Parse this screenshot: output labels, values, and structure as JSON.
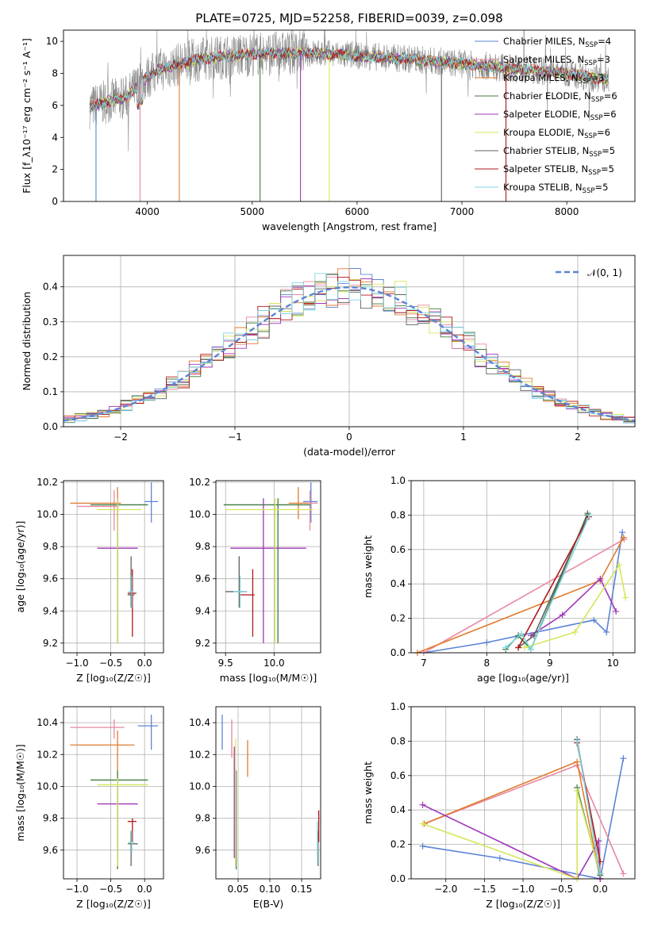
{
  "colors": {
    "Chabrier MILES": "#5b84d6",
    "Salpeter MILES": "#e8889e",
    "Kroupa MILES": "#e07b2e",
    "Chabrier ELODIE": "#3f7a3f",
    "Salpeter ELODIE": "#a035b8",
    "Kroupa ELODIE": "#d6e65a",
    "Chabrier STELIB": "#606060",
    "Salpeter STELIB": "#b01818",
    "Kroupa STELIB": "#7fd6e0",
    "normal": "#5b84d6"
  },
  "chart_data": [
    {
      "id": "spectrum",
      "type": "line",
      "title": "PLATE=0725, MJD=52258, FIBERID=0039, z=0.098",
      "xlabel": "wavelength [Angstrom, rest frame]",
      "ylabel": "Flux [f_λ10⁻¹⁷ erg cm⁻² s⁻¹ A⁻¹]",
      "xlim": [
        3200,
        8650
      ],
      "ylim": [
        0,
        10.7
      ],
      "xticks": [
        4000,
        5000,
        6000,
        7000,
        8000
      ],
      "yticks": [
        0,
        2,
        4,
        6,
        8,
        10
      ],
      "grid": false,
      "legend_position": "right",
      "data_range_x": [
        3450,
        8400
      ],
      "continuum": {
        "x": [
          3450,
          3600,
          3800,
          3950,
          4100,
          4500,
          5000,
          5500,
          6000,
          6500,
          7000,
          7500,
          8000,
          8400
        ],
        "y": [
          5.9,
          6.2,
          6.5,
          7.5,
          8.2,
          8.9,
          9.2,
          9.3,
          9.1,
          8.9,
          8.6,
          8.3,
          8.0,
          7.6
        ]
      },
      "series": [
        {
          "name": "Chabrier MILES",
          "n_ssp": "4"
        },
        {
          "name": "Salpeter MILES",
          "n_ssp": "3"
        },
        {
          "name": "Kroupa MILES",
          "n_ssp": "3"
        },
        {
          "name": "Chabrier ELODIE",
          "n_ssp": "6"
        },
        {
          "name": "Salpeter ELODIE",
          "n_ssp": "6"
        },
        {
          "name": "Kroupa ELODIE",
          "n_ssp": "6"
        },
        {
          "name": "Chabrier STELIB",
          "n_ssp": "5"
        },
        {
          "name": "Salpeter STELIB",
          "n_ssp": "5"
        },
        {
          "name": "Kroupa STELIB",
          "n_ssp": "5"
        }
      ]
    },
    {
      "id": "residuals",
      "type": "area",
      "xlabel": "(data-model)/error",
      "ylabel": "Normed distribution",
      "xlim": [
        -2.5,
        2.5
      ],
      "ylim": [
        0,
        0.49
      ],
      "xticks": [
        -2,
        -1,
        0,
        1,
        2
      ],
      "yticks": [
        0.0,
        0.1,
        0.2,
        0.3,
        0.4
      ],
      "grid": true,
      "legend_position": "top-right",
      "reference_curve": {
        "name": "𝒩(0, 1)",
        "mean": 0,
        "sigma": 1
      },
      "bin_width": 0.1
    },
    {
      "id": "age_vs_Z",
      "type": "scatter",
      "xlabel": "Z [log₁₀(Z/Z☉)]",
      "ylabel": "age  [log₁₀(age/yr)]",
      "xlim": [
        -1.2,
        0.28
      ],
      "ylim": [
        9.14,
        10.21
      ],
      "xticks": [
        -1.0,
        -0.5,
        0.0
      ],
      "yticks": [
        9.2,
        9.4,
        9.6,
        9.8,
        10.0,
        10.2
      ],
      "grid": true,
      "points": [
        {
          "s": "Chabrier MILES",
          "x": 0.1,
          "y": 10.08,
          "xe": [
            0.0,
            0.2
          ],
          "ye": [
            9.95,
            10.2
          ]
        },
        {
          "s": "Salpeter MILES",
          "x": -0.45,
          "y": 10.05,
          "xe": [
            -1.0,
            -0.4
          ],
          "ye": [
            9.9,
            10.15
          ]
        },
        {
          "s": "Kroupa MILES",
          "x": -0.4,
          "y": 10.07,
          "xe": [
            -1.1,
            -0.35
          ],
          "ye": [
            9.95,
            10.17
          ]
        },
        {
          "s": "Chabrier ELODIE",
          "x": -0.4,
          "y": 10.06,
          "xe": [
            -0.8,
            0.05
          ],
          "ye": [
            9.2,
            10.1
          ]
        },
        {
          "s": "Salpeter ELODIE",
          "x": -0.4,
          "y": 9.79,
          "xe": [
            -0.7,
            -0.1
          ],
          "ye": [
            9.2,
            10.1
          ]
        },
        {
          "s": "Kroupa ELODIE",
          "x": -0.4,
          "y": 10.03,
          "xe": [
            -0.7,
            -0.05
          ],
          "ye": [
            9.2,
            10.1
          ]
        },
        {
          "s": "Chabrier STELIB",
          "x": -0.2,
          "y": 9.5,
          "xe": [
            -0.25,
            -0.15
          ],
          "ye": [
            9.42,
            9.74
          ]
        },
        {
          "s": "Salpeter STELIB",
          "x": -0.18,
          "y": 9.51,
          "xe": [
            -0.25,
            -0.12
          ],
          "ye": [
            9.24,
            9.66
          ]
        },
        {
          "s": "Kroupa STELIB",
          "x": -0.19,
          "y": 9.52,
          "xe": [
            -0.24,
            -0.16
          ],
          "ye": [
            9.42,
            9.62
          ]
        }
      ]
    },
    {
      "id": "age_vs_mass",
      "type": "scatter",
      "xlabel": "mass [log₁₀(M/M☉)]",
      "ylabel": "",
      "xlim": [
        9.4,
        10.48
      ],
      "ylim": [
        9.14,
        10.21
      ],
      "xticks": [
        9.5,
        10.0
      ],
      "yticks": [
        9.2,
        9.4,
        9.6,
        9.8,
        10.0,
        10.2
      ],
      "grid": true,
      "points": [
        {
          "s": "Chabrier MILES",
          "x": 10.38,
          "y": 10.08,
          "xe": [
            10.3,
            10.45
          ],
          "ye": [
            9.95,
            10.2
          ]
        },
        {
          "s": "Salpeter MILES",
          "x": 10.37,
          "y": 10.07,
          "xe": [
            10.3,
            10.45
          ],
          "ye": [
            9.9,
            10.15
          ]
        },
        {
          "s": "Kroupa MILES",
          "x": 10.25,
          "y": 10.07,
          "xe": [
            10.15,
            10.35
          ],
          "ye": [
            9.97,
            10.17
          ]
        },
        {
          "s": "Chabrier ELODIE",
          "x": 10.04,
          "y": 10.06,
          "xe": [
            9.48,
            10.37
          ],
          "ye": [
            9.2,
            10.1
          ]
        },
        {
          "s": "Salpeter ELODIE",
          "x": 9.89,
          "y": 9.79,
          "xe": [
            9.55,
            10.33
          ],
          "ye": [
            9.2,
            10.1
          ]
        },
        {
          "s": "Kroupa ELODIE",
          "x": 10.01,
          "y": 10.03,
          "xe": [
            9.5,
            10.4
          ],
          "ye": [
            9.2,
            10.1
          ]
        },
        {
          "s": "Chabrier STELIB",
          "x": 9.64,
          "y": 9.52,
          "xe": [
            9.5,
            9.72
          ],
          "ye": [
            9.42,
            9.74
          ]
        },
        {
          "s": "Salpeter STELIB",
          "x": 9.78,
          "y": 9.5,
          "xe": [
            9.65,
            9.8
          ],
          "ye": [
            9.24,
            9.66
          ]
        },
        {
          "s": "Kroupa STELIB",
          "x": 9.65,
          "y": 9.52,
          "xe": [
            9.58,
            9.72
          ],
          "ye": [
            9.42,
            9.62
          ]
        }
      ]
    },
    {
      "id": "weight_vs_age",
      "type": "line",
      "xlabel": "age  [log₁₀(age/yr)]",
      "ylabel": "mass weight",
      "xlim": [
        6.8,
        10.35
      ],
      "ylim": [
        0,
        1.0
      ],
      "xticks": [
        7,
        8,
        9,
        10
      ],
      "yticks": [
        0.0,
        0.2,
        0.4,
        0.6,
        0.8,
        1.0
      ],
      "grid": true,
      "series": [
        {
          "name": "Chabrier MILES",
          "x": [
            7.0,
            8.0,
            9.7,
            9.9,
            10.15
          ],
          "y": [
            0.0,
            0.06,
            0.19,
            0.12,
            0.7
          ]
        },
        {
          "name": "Salpeter MILES",
          "x": [
            7.0,
            10.18
          ],
          "y": [
            0.0,
            0.66
          ]
        },
        {
          "name": "Kroupa MILES",
          "x": [
            6.9,
            9.8,
            10.17
          ],
          "y": [
            0.0,
            0.42,
            0.67
          ]
        },
        {
          "name": "Chabrier ELODIE",
          "x": [
            8.3,
            8.5,
            8.7,
            9.6
          ],
          "y": [
            0.02,
            0.1,
            0.02,
            0.81
          ]
        },
        {
          "name": "Salpeter ELODIE",
          "x": [
            8.7,
            9.2,
            9.8,
            10.05
          ],
          "y": [
            0.1,
            0.22,
            0.43,
            0.24
          ]
        },
        {
          "name": "Kroupa ELODIE",
          "x": [
            8.6,
            9.4,
            10.1,
            10.2
          ],
          "y": [
            0.03,
            0.12,
            0.51,
            0.32
          ]
        },
        {
          "name": "Chabrier STELIB",
          "x": [
            8.5,
            8.75,
            9.6
          ],
          "y": [
            0.03,
            0.1,
            0.8
          ]
        },
        {
          "name": "Salpeter STELIB",
          "x": [
            8.5,
            9.62
          ],
          "y": [
            0.03,
            0.79
          ]
        },
        {
          "name": "Kroupa STELIB",
          "x": [
            8.3,
            8.55,
            8.7,
            9.63
          ],
          "y": [
            0.03,
            0.11,
            0.02,
            0.8
          ]
        }
      ]
    },
    {
      "id": "mass_vs_Z",
      "type": "scatter",
      "xlabel": "Z [log₁₀(Z/Z☉)]",
      "ylabel": "mass [log₁₀(M/M☉)]",
      "xlim": [
        -1.2,
        0.28
      ],
      "ylim": [
        9.42,
        10.5
      ],
      "xticks": [
        -1.0,
        -0.5,
        0.0
      ],
      "yticks": [
        9.6,
        9.8,
        10.0,
        10.2,
        10.4
      ],
      "grid": true,
      "points": [
        {
          "s": "Chabrier MILES",
          "x": 0.1,
          "y": 10.38,
          "xe": [
            -0.1,
            0.2
          ],
          "ye": [
            10.23,
            10.45
          ]
        },
        {
          "s": "Salpeter MILES",
          "x": -0.45,
          "y": 10.37,
          "xe": [
            -1.1,
            -0.3
          ],
          "ye": [
            10.3,
            10.42
          ]
        },
        {
          "s": "Kroupa MILES",
          "x": -0.4,
          "y": 10.26,
          "xe": [
            -1.1,
            -0.15
          ],
          "ye": [
            10.1,
            10.35
          ]
        },
        {
          "s": "Chabrier ELODIE",
          "x": -0.4,
          "y": 10.04,
          "xe": [
            -0.8,
            0.05
          ],
          "ye": [
            9.48,
            10.1
          ]
        },
        {
          "s": "Salpeter ELODIE",
          "x": -0.4,
          "y": 9.89,
          "xe": [
            -0.7,
            -0.1
          ],
          "ye": [
            9.55,
            10.0
          ]
        },
        {
          "s": "Kroupa ELODIE",
          "x": -0.4,
          "y": 10.01,
          "xe": [
            -0.7,
            0.05
          ],
          "ye": [
            9.5,
            10.05
          ]
        },
        {
          "s": "Chabrier STELIB",
          "x": -0.2,
          "y": 9.64,
          "xe": [
            -0.25,
            -0.1
          ],
          "ye": [
            9.5,
            9.72
          ]
        },
        {
          "s": "Salpeter STELIB",
          "x": -0.18,
          "y": 9.78,
          "xe": [
            -0.25,
            -0.12
          ],
          "ye": [
            9.65,
            9.8
          ]
        },
        {
          "s": "Kroupa STELIB",
          "x": -0.19,
          "y": 9.65,
          "xe": [
            -0.24,
            -0.16
          ],
          "ye": [
            9.58,
            9.72
          ]
        }
      ]
    },
    {
      "id": "mass_vs_ebv",
      "type": "scatter",
      "xlabel": "E(B-V)",
      "ylabel": "",
      "xlim": [
        0.015,
        0.18
      ],
      "ylim": [
        9.42,
        10.5
      ],
      "xticks": [
        0.05,
        0.1,
        0.15
      ],
      "yticks": [
        9.6,
        9.8,
        10.0,
        10.2,
        10.4
      ],
      "grid": true,
      "points": [
        {
          "s": "Chabrier MILES",
          "x": 0.025,
          "y": 10.38,
          "ye": [
            10.23,
            10.45
          ]
        },
        {
          "s": "Salpeter MILES",
          "x": 0.04,
          "y": 10.37,
          "ye": [
            10.18,
            10.42
          ]
        },
        {
          "s": "Kroupa MILES",
          "x": 0.065,
          "y": 10.26,
          "ye": [
            10.06,
            10.29
          ]
        },
        {
          "s": "Chabrier ELODIE",
          "x": 0.047,
          "y": 10.04,
          "ye": [
            9.48,
            10.1
          ]
        },
        {
          "s": "Salpeter ELODIE",
          "x": 0.044,
          "y": 9.89,
          "ye": [
            9.55,
            10.25
          ]
        },
        {
          "s": "Kroupa ELODIE",
          "x": 0.046,
          "y": 10.01,
          "ye": [
            9.5,
            10.3
          ]
        },
        {
          "s": "Chabrier STELIB",
          "x": 0.176,
          "y": 9.64,
          "ye": [
            9.5,
            9.72
          ]
        },
        {
          "s": "Salpeter STELIB",
          "x": 0.177,
          "y": 9.78,
          "ye": [
            9.65,
            9.85
          ]
        },
        {
          "s": "Kroupa STELIB",
          "x": 0.175,
          "y": 9.65,
          "ye": [
            9.52,
            9.78
          ]
        }
      ]
    },
    {
      "id": "weight_vs_Z",
      "type": "line",
      "xlabel": "Z [log₁₀(Z/Z☉)]",
      "ylabel": "mass weight",
      "xlim": [
        -2.45,
        0.45
      ],
      "ylim": [
        0,
        1.0
      ],
      "xticks": [
        -2.0,
        -1.5,
        -1.0,
        -0.5,
        0.0
      ],
      "yticks": [
        0.0,
        0.2,
        0.4,
        0.6,
        0.8,
        1.0
      ],
      "grid": true,
      "series": [
        {
          "name": "Chabrier MILES",
          "x": [
            -2.3,
            -1.3,
            0.0,
            0.3
          ],
          "y": [
            0.19,
            0.12,
            0.0,
            0.7
          ]
        },
        {
          "name": "Salpeter MILES",
          "x": [
            -2.28,
            -0.3,
            0.3
          ],
          "y": [
            0.32,
            0.66,
            0.03
          ]
        },
        {
          "name": "Kroupa MILES",
          "x": [
            -2.28,
            -0.3,
            0.0
          ],
          "y": [
            0.32,
            0.68,
            0.0
          ]
        },
        {
          "name": "Chabrier ELODIE",
          "x": [
            -0.3,
            0.0
          ],
          "y": [
            0.53,
            0.02
          ]
        },
        {
          "name": "Salpeter ELODIE",
          "x": [
            -2.3,
            -0.3,
            -0.02,
            0.0
          ],
          "y": [
            0.43,
            0.0,
            0.22,
            0.0
          ]
        },
        {
          "name": "Kroupa ELODIE",
          "x": [
            -2.3,
            -0.3,
            -0.3,
            0.0
          ],
          "y": [
            0.32,
            0.0,
            0.51,
            0.03
          ]
        },
        {
          "name": "Chabrier STELIB",
          "x": [
            -0.3,
            0.0
          ],
          "y": [
            0.81,
            0.03
          ]
        },
        {
          "name": "Salpeter STELIB",
          "x": [
            -0.3,
            0.0
          ],
          "y": [
            0.79,
            0.1
          ]
        },
        {
          "name": "Kroupa STELIB",
          "x": [
            -0.3,
            0.0
          ],
          "y": [
            0.8,
            0.03
          ]
        }
      ]
    }
  ]
}
